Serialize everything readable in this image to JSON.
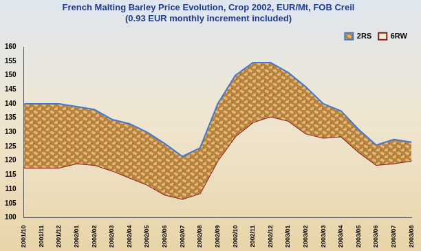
{
  "chart_data": {
    "type": "line",
    "title": "French Malting Barley Price Evolution, Crop 2002, EUR/Mt, FOB Creil",
    "subtitle": "(0.93 EUR monthly increment included)",
    "categories": [
      "2001/10",
      "2001/11",
      "2001/12",
      "2002/01",
      "2002/02",
      "2002/03",
      "2002/04",
      "2002/05",
      "2002/06",
      "2002/07",
      "2002/08",
      "2002/09",
      "2002/10",
      "2002/11",
      "2002/12",
      "2003/01",
      "2003/02",
      "2003/03",
      "2003/04",
      "2003/05",
      "2003/06",
      "2003/07",
      "2003/08"
    ],
    "series": [
      {
        "name": "2RS",
        "color": "#3f78d6",
        "values": [
          140,
          140,
          140,
          139,
          138,
          134.5,
          133,
          130,
          126,
          121.5,
          124.5,
          140,
          150,
          154.5,
          154.5,
          151,
          146,
          140,
          137.5,
          131,
          125.5,
          127.5,
          126.5
        ]
      },
      {
        "name": "6RW",
        "color": "#8b1a1a",
        "values": [
          117.5,
          117.5,
          117.5,
          119,
          118.5,
          116.5,
          114,
          111.5,
          108,
          106.5,
          108.5,
          120,
          128.5,
          133.5,
          135.5,
          134,
          129.5,
          128,
          128.5,
          123,
          118.5,
          119,
          120
        ]
      }
    ],
    "ylim": [
      100,
      160
    ],
    "yticks": [
      100,
      105,
      110,
      115,
      120,
      125,
      130,
      135,
      140,
      145,
      150,
      155,
      160
    ],
    "grid": false,
    "legend": "top-right"
  }
}
